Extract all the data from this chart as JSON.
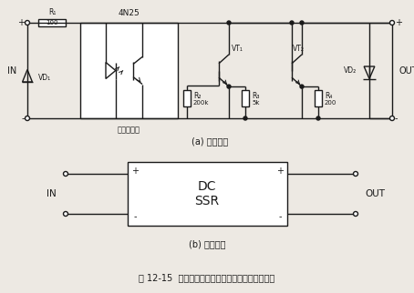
{
  "title": "图 12-15  直流式固态继电器的内部电路与图形符号",
  "subtitle_a": "(a) 内部电路",
  "subtitle_b": "(b) 图形符号",
  "label_4N25": "4N25",
  "label_optocoupler": "光电耦合器",
  "label_R1": "R₁",
  "label_R1_val": "100",
  "label_R2": "R₂",
  "label_R2_val": "200k",
  "label_R3": "R₃",
  "label_R3_val": "5k",
  "label_R4": "R₄",
  "label_R4_val": "200",
  "label_VD1": "VD₁",
  "label_VD2": "VD₂",
  "label_VT1": "VT₁",
  "label_VT2": "VT₂",
  "bg_color": "#ede9e3",
  "line_color": "#1a1a1a",
  "text_color": "#1a1a1a"
}
